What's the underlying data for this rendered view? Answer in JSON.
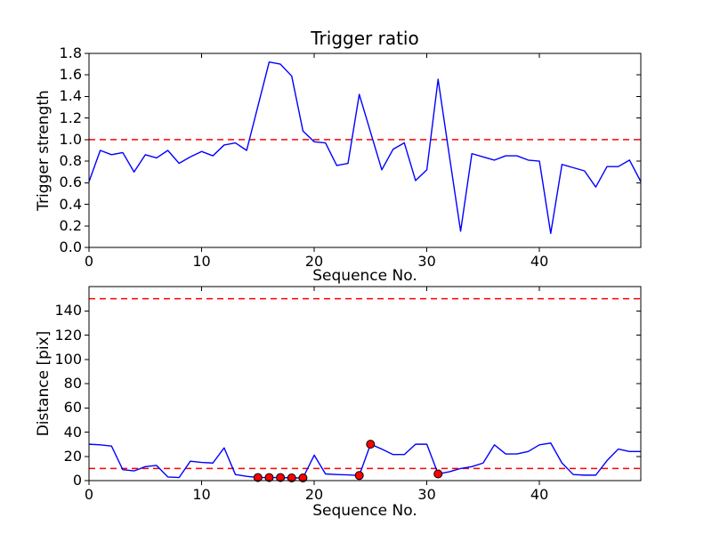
{
  "figure": {
    "background": "#ffffff",
    "spine_color": "#000000",
    "text_color": "#000000"
  },
  "chart_data": [
    {
      "type": "line",
      "title": "Trigger ratio",
      "xlabel": "Sequence No.",
      "ylabel": "Trigger strength",
      "xlim": [
        0,
        49
      ],
      "ylim": [
        0,
        1.8
      ],
      "grid": false,
      "legend": "none",
      "line_color": "#0000ff",
      "threshold_lines": [
        {
          "y": 1.0,
          "color": "#ff0000",
          "style": "dashed"
        }
      ],
      "xtick_values": [
        0,
        10,
        20,
        30,
        40
      ],
      "xtick_labels": [
        "0",
        "10",
        "20",
        "30",
        "40"
      ],
      "ytick_values": [
        0.0,
        0.2,
        0.4,
        0.6,
        0.8,
        1.0,
        1.2,
        1.4,
        1.6,
        1.8
      ],
      "ytick_labels": [
        "0.0",
        "0.2",
        "0.4",
        "0.6",
        "0.8",
        "1.0",
        "1.2",
        "1.4",
        "1.6",
        "1.8"
      ],
      "x": [
        0,
        1,
        2,
        3,
        4,
        5,
        6,
        7,
        8,
        9,
        10,
        11,
        12,
        13,
        14,
        15,
        16,
        17,
        18,
        19,
        20,
        21,
        22,
        23,
        24,
        25,
        26,
        27,
        28,
        29,
        30,
        31,
        32,
        33,
        34,
        35,
        36,
        37,
        38,
        39,
        40,
        41,
        42,
        43,
        44,
        45,
        46,
        47,
        48,
        49
      ],
      "values": [
        0.61,
        0.9,
        0.86,
        0.88,
        0.7,
        0.86,
        0.83,
        0.9,
        0.78,
        0.84,
        0.89,
        0.85,
        0.95,
        0.97,
        0.9,
        1.31,
        1.72,
        1.7,
        1.59,
        1.08,
        0.98,
        0.97,
        0.76,
        0.78,
        1.42,
        1.07,
        0.72,
        0.91,
        0.97,
        0.62,
        0.72,
        1.56,
        0.85,
        0.15,
        0.87,
        0.84,
        0.81,
        0.85,
        0.85,
        0.81,
        0.8,
        0.13,
        0.77,
        0.74,
        0.71,
        0.56,
        0.75,
        0.75,
        0.81,
        0.61
      ]
    },
    {
      "type": "line",
      "title": "",
      "xlabel": "Sequence No.",
      "ylabel": "Distance [pix]",
      "xlim": [
        0,
        49
      ],
      "ylim": [
        0,
        160
      ],
      "grid": false,
      "legend": "none",
      "line_color": "#0000ff",
      "threshold_lines": [
        {
          "y": 150,
          "color": "#ff0000",
          "style": "dashed"
        },
        {
          "y": 10,
          "color": "#ff0000",
          "style": "dashed"
        }
      ],
      "xtick_values": [
        0,
        10,
        20,
        30,
        40
      ],
      "xtick_labels": [
        "0",
        "10",
        "20",
        "30",
        "40"
      ],
      "ytick_values": [
        0,
        20,
        40,
        60,
        80,
        100,
        120,
        140
      ],
      "ytick_labels": [
        "0",
        "20",
        "40",
        "60",
        "80",
        "100",
        "120",
        "140"
      ],
      "x": [
        0,
        1,
        2,
        3,
        4,
        5,
        6,
        7,
        8,
        9,
        10,
        11,
        12,
        13,
        14,
        15,
        16,
        17,
        18,
        19,
        20,
        21,
        22,
        23,
        24,
        25,
        26,
        27,
        28,
        29,
        30,
        31,
        32,
        33,
        34,
        35,
        36,
        37,
        38,
        39,
        40,
        41,
        42,
        43,
        44,
        45,
        46,
        47,
        48,
        49
      ],
      "values": [
        30,
        29.5,
        28.5,
        9,
        8,
        11.5,
        12.5,
        3,
        2.5,
        16,
        15,
        14.5,
        27,
        5,
        3.5,
        2.5,
        2.5,
        2.5,
        2.2,
        2.2,
        21,
        5.5,
        5,
        4.7,
        4.2,
        30,
        26,
        21.5,
        21.5,
        30,
        30,
        5.5,
        7.3,
        10,
        11.5,
        14.5,
        29.5,
        22,
        22,
        24,
        29.5,
        31,
        14.5,
        5,
        4.5,
        4.5,
        16.5,
        26,
        24,
        24
      ],
      "markers": {
        "shape": "circle",
        "color": "#ff0000",
        "edge_color": "#000000",
        "points": [
          [
            15,
            2.5
          ],
          [
            16,
            2.5
          ],
          [
            17,
            2.5
          ],
          [
            18,
            2.2
          ],
          [
            19,
            2.2
          ],
          [
            24,
            4.2
          ],
          [
            25,
            30
          ],
          [
            31,
            5.5
          ]
        ]
      }
    }
  ]
}
